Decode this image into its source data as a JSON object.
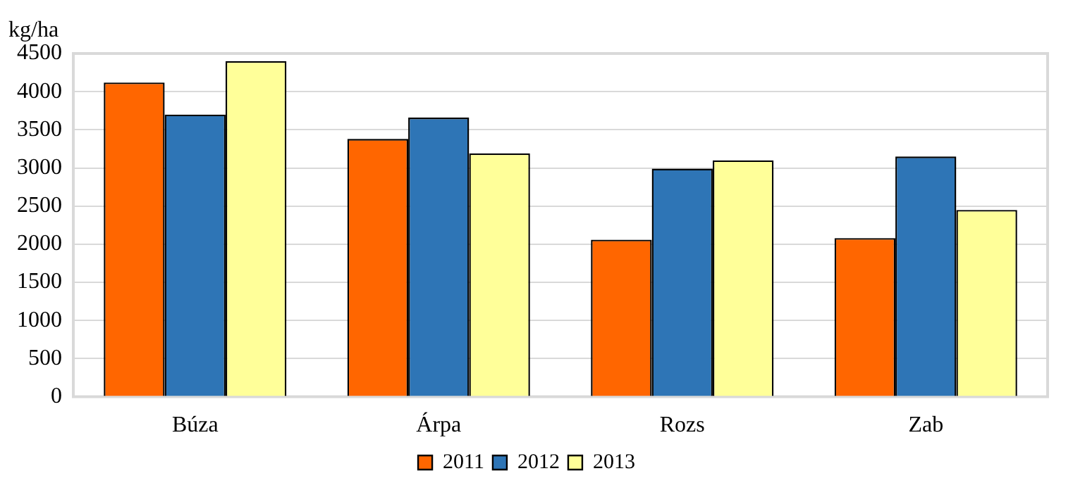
{
  "chart_data": {
    "type": "bar",
    "ylabel": "kg/ha",
    "categories": [
      "Búza",
      "Árpa",
      "Rozs",
      "Zab"
    ],
    "series": [
      {
        "name": "2011",
        "color": "#ff6600",
        "values": [
          4120,
          3380,
          2060,
          2080
        ]
      },
      {
        "name": "2012",
        "color": "#2e75b6",
        "values": [
          3700,
          3660,
          2990,
          3150
        ]
      },
      {
        "name": "2013",
        "color": "#ffff99",
        "values": [
          4400,
          3190,
          3100,
          2450
        ]
      }
    ],
    "ylim": [
      0,
      4500
    ],
    "yticks": [
      0,
      500,
      1000,
      1500,
      2000,
      2500,
      3000,
      3500,
      4000,
      4500
    ],
    "grid": "y",
    "legend": "bottom"
  }
}
